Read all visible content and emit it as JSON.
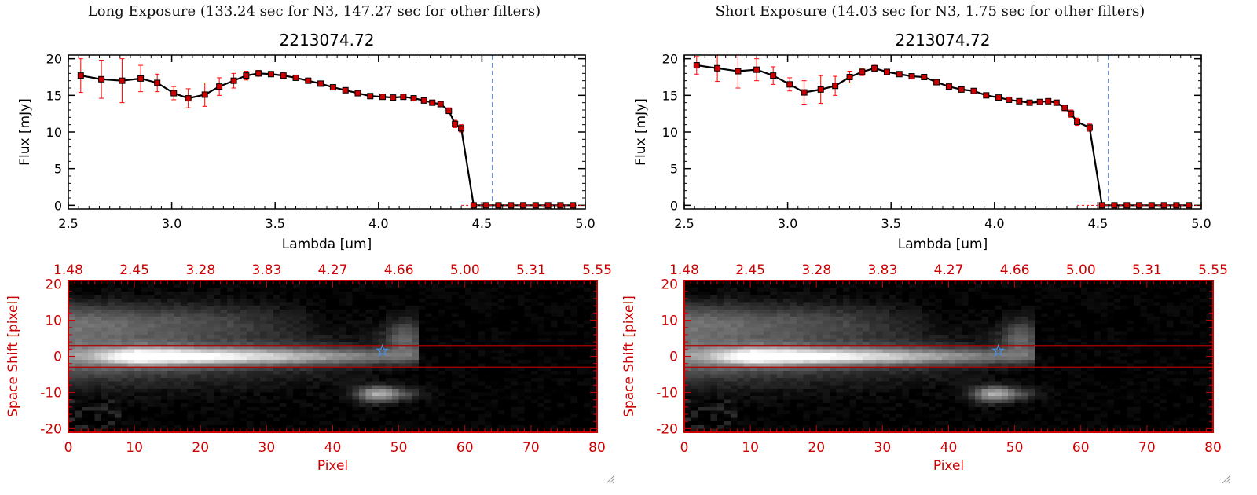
{
  "panels": [
    {
      "title": "Long Exposure (133.24 sec for N3, 147.27 sec for other filters)",
      "chart_data": [
        {
          "type": "line",
          "title": "2213074.72",
          "xlabel": "Lambda [um]",
          "ylabel": "Flux [mJy]",
          "xlim": [
            2.5,
            5.0
          ],
          "ylim": [
            -0.5,
            20.5
          ],
          "xticks": [
            "2.5",
            "3.0",
            "3.5",
            "4.0",
            "4.5",
            "5.0"
          ],
          "yticks": [
            "0",
            "5",
            "10",
            "15",
            "20"
          ],
          "vline": 4.55,
          "colors": {
            "line": "#000000",
            "marker": "#cc0000",
            "errorbar": "#ff0000",
            "vline": "#4a90e2"
          },
          "series": [
            {
              "x": [
                2.56,
                2.66,
                2.76,
                2.85,
                2.93,
                3.01,
                3.08,
                3.16,
                3.23,
                3.3,
                3.36,
                3.42,
                3.48,
                3.54,
                3.6,
                3.66,
                3.72,
                3.78,
                3.84,
                3.9,
                3.96,
                4.02,
                4.07,
                4.12,
                4.17,
                4.22,
                4.26,
                4.3,
                4.34,
                4.37,
                4.4,
                4.46,
                4.52,
                4.58,
                4.64,
                4.7,
                4.76,
                4.82,
                4.88,
                4.94
              ],
              "y": [
                17.7,
                17.2,
                17.0,
                17.3,
                16.7,
                15.3,
                14.6,
                15.1,
                16.2,
                17.0,
                17.7,
                18.0,
                17.9,
                17.7,
                17.4,
                17.0,
                16.6,
                16.1,
                15.7,
                15.3,
                14.9,
                14.8,
                14.7,
                14.8,
                14.6,
                14.3,
                14.0,
                13.8,
                12.9,
                11.1,
                10.5,
                0.0,
                0.0,
                0.0,
                0.0,
                0.0,
                0.0,
                0.0,
                0.0,
                0.0
              ],
              "err": [
                2.3,
                2.6,
                3.0,
                1.8,
                1.2,
                0.9,
                1.3,
                1.6,
                1.2,
                1.0,
                0.6,
                0.4,
                0.3,
                0.3,
                0.3,
                0.3,
                0.3,
                0.3,
                0.3,
                0.3,
                0.3,
                0.3,
                0.3,
                0.3,
                0.3,
                0.3,
                0.3,
                0.3,
                0.4,
                0.5,
                0.5,
                0,
                0,
                0,
                0,
                0,
                0,
                0,
                0,
                0
              ]
            }
          ]
        },
        {
          "type": "heatmap",
          "xlabel": "Pixel",
          "ylabel": "Space Shift [pixel]",
          "xlim": [
            0,
            80
          ],
          "ylim": [
            -21,
            21
          ],
          "xticks": [
            "0",
            "10",
            "20",
            "30",
            "40",
            "50",
            "60",
            "70",
            "80"
          ],
          "yticks": [
            "-20",
            "-10",
            "0",
            "10",
            "20"
          ],
          "top_ticks": [
            "1.48",
            "2.45",
            "3.28",
            "3.83",
            "4.27",
            "4.66",
            "5.00",
            "5.31",
            "5.55"
          ],
          "hlines": [
            3,
            -3
          ],
          "star": {
            "x": 47.5,
            "y": 1.5
          },
          "colors": {
            "axes": "#cc0000",
            "hline": "#b00000",
            "star": "#4a90e2",
            "background": "#000000"
          }
        }
      ]
    },
    {
      "title": "Short Exposure (14.03 sec for N3, 1.75 sec for other filters)",
      "chart_data": [
        {
          "type": "line",
          "title": "2213074.72",
          "xlabel": "Lambda [um]",
          "ylabel": "Flux [mJy]",
          "xlim": [
            2.5,
            5.0
          ],
          "ylim": [
            -0.5,
            20.5
          ],
          "xticks": [
            "2.5",
            "3.0",
            "3.5",
            "4.0",
            "4.5",
            "5.0"
          ],
          "yticks": [
            "0",
            "5",
            "10",
            "15",
            "20"
          ],
          "vline": 4.55,
          "colors": {
            "line": "#000000",
            "marker": "#cc0000",
            "errorbar": "#ff0000",
            "vline": "#4a90e2"
          },
          "series": [
            {
              "x": [
                2.56,
                2.66,
                2.76,
                2.85,
                2.93,
                3.01,
                3.08,
                3.16,
                3.23,
                3.3,
                3.36,
                3.42,
                3.48,
                3.54,
                3.6,
                3.66,
                3.72,
                3.78,
                3.84,
                3.9,
                3.96,
                4.02,
                4.07,
                4.12,
                4.17,
                4.22,
                4.26,
                4.3,
                4.34,
                4.37,
                4.4,
                4.46,
                4.52,
                4.58,
                4.64,
                4.7,
                4.76,
                4.82,
                4.88,
                4.94
              ],
              "y": [
                19.1,
                18.7,
                18.3,
                18.5,
                17.7,
                16.5,
                15.4,
                15.8,
                16.3,
                17.5,
                18.2,
                18.7,
                18.2,
                17.9,
                17.6,
                17.5,
                16.8,
                16.2,
                15.8,
                15.6,
                15.0,
                14.7,
                14.4,
                14.2,
                14.0,
                14.1,
                14.2,
                14.0,
                13.3,
                12.5,
                11.4,
                10.6,
                0.0,
                0.0,
                0.0,
                0.0,
                0.0,
                0.0,
                0.0,
                0.0
              ],
              "err": [
                1.2,
                1.8,
                2.3,
                1.5,
                1.2,
                0.9,
                1.6,
                1.9,
                1.3,
                0.8,
                0.5,
                0.4,
                0.3,
                0.3,
                0.3,
                0.3,
                0.3,
                0.3,
                0.3,
                0.3,
                0.3,
                0.3,
                0.3,
                0.3,
                0.3,
                0.3,
                0.3,
                0.3,
                0.4,
                0.5,
                0.5,
                0.5,
                0,
                0,
                0,
                0,
                0,
                0,
                0,
                0
              ]
            }
          ]
        },
        {
          "type": "heatmap",
          "xlabel": "Pixel",
          "ylabel": "Space Shift [pixel]",
          "xlim": [
            0,
            80
          ],
          "ylim": [
            -21,
            21
          ],
          "xticks": [
            "0",
            "10",
            "20",
            "30",
            "40",
            "50",
            "60",
            "70",
            "80"
          ],
          "yticks": [
            "-20",
            "-10",
            "0",
            "10",
            "20"
          ],
          "top_ticks": [
            "1.48",
            "2.45",
            "3.28",
            "3.83",
            "4.27",
            "4.66",
            "5.00",
            "5.31",
            "5.55"
          ],
          "hlines": [
            3,
            -3
          ],
          "star": {
            "x": 47.5,
            "y": 1.5
          },
          "colors": {
            "axes": "#cc0000",
            "hline": "#b00000",
            "star": "#4a90e2",
            "background": "#000000"
          }
        }
      ]
    }
  ]
}
